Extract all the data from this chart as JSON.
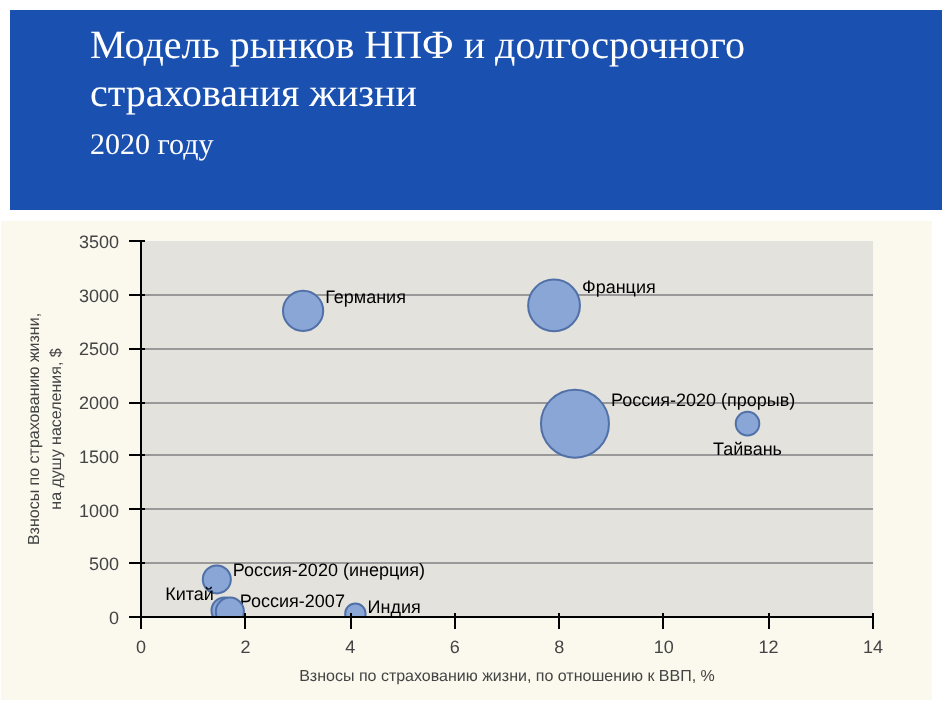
{
  "chart_data": {
    "type": "bubble",
    "title": "Модель рынков НПФ и долгосрочного страхования жизни",
    "subtitle": "2020 году",
    "xlabel": "Взносы по страхованию жизни, по отношению к ВВП, %",
    "ylabel": "Взносы по страхованию жизни,\nна душу населения, $",
    "series": [
      {
        "name": "Германия",
        "color": "#8aa6d6",
        "x": [
          3.1
        ],
        "values": [
          2850
        ],
        "sizes": [
          0.35
        ]
      },
      {
        "name": "Франция",
        "color": "#8aa6d6",
        "x": [
          7.9
        ],
        "values": [
          2900
        ],
        "sizes": [
          0.58
        ]
      },
      {
        "name": "Россия-2020 (прорыв)",
        "color": "#8aa6d6",
        "x": [
          8.3
        ],
        "values": [
          1800
        ],
        "sizes": [
          1
        ]
      },
      {
        "name": "Тайвань",
        "color": "#8aa6d6",
        "x": [
          11.6
        ],
        "values": [
          1800
        ],
        "sizes": [
          0.12
        ]
      },
      {
        "name": "Россия-2020 (инерция)",
        "color": "#8aa6d6",
        "x": [
          1.45
        ],
        "values": [
          350
        ],
        "sizes": [
          0.17
        ]
      },
      {
        "name": "Россия-2007",
        "color": "#8aa6d6",
        "x": [
          1.6
        ],
        "values": [
          60
        ],
        "sizes": [
          0.15
        ]
      },
      {
        "name": "Китай",
        "color": "#8aa6d6",
        "x": [
          1.7
        ],
        "values": [
          50
        ],
        "sizes": [
          0.17
        ]
      },
      {
        "name": "Индия",
        "color": "#8aa6d6",
        "x": [
          4.1
        ],
        "values": [
          30
        ],
        "sizes": [
          0.09
        ]
      }
    ],
    "xlim": [
      0,
      14
    ],
    "xticks": [
      0,
      2,
      4,
      6,
      8,
      10,
      12,
      14
    ],
    "ylim": [
      0,
      3500
    ],
    "yticks": [
      0,
      500,
      1000,
      1500,
      2000,
      2500,
      3000,
      3500
    ],
    "grid": "y"
  }
}
